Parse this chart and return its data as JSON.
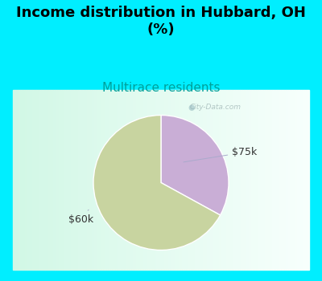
{
  "title": "Income distribution in Hubbard, OH\n(%)",
  "subtitle": "Multirace residents",
  "slices": [
    {
      "label": "$75k",
      "value": 33,
      "color": "#c9aed6"
    },
    {
      "label": "$60k",
      "value": 67,
      "color": "#c8d4a0"
    }
  ],
  "title_fontsize": 13,
  "subtitle_fontsize": 11,
  "subtitle_color": "#00a09a",
  "label_fontsize": 9,
  "cyan_color": "#00eeff",
  "watermark": "City-Data.com",
  "watermark_icon": "☉"
}
